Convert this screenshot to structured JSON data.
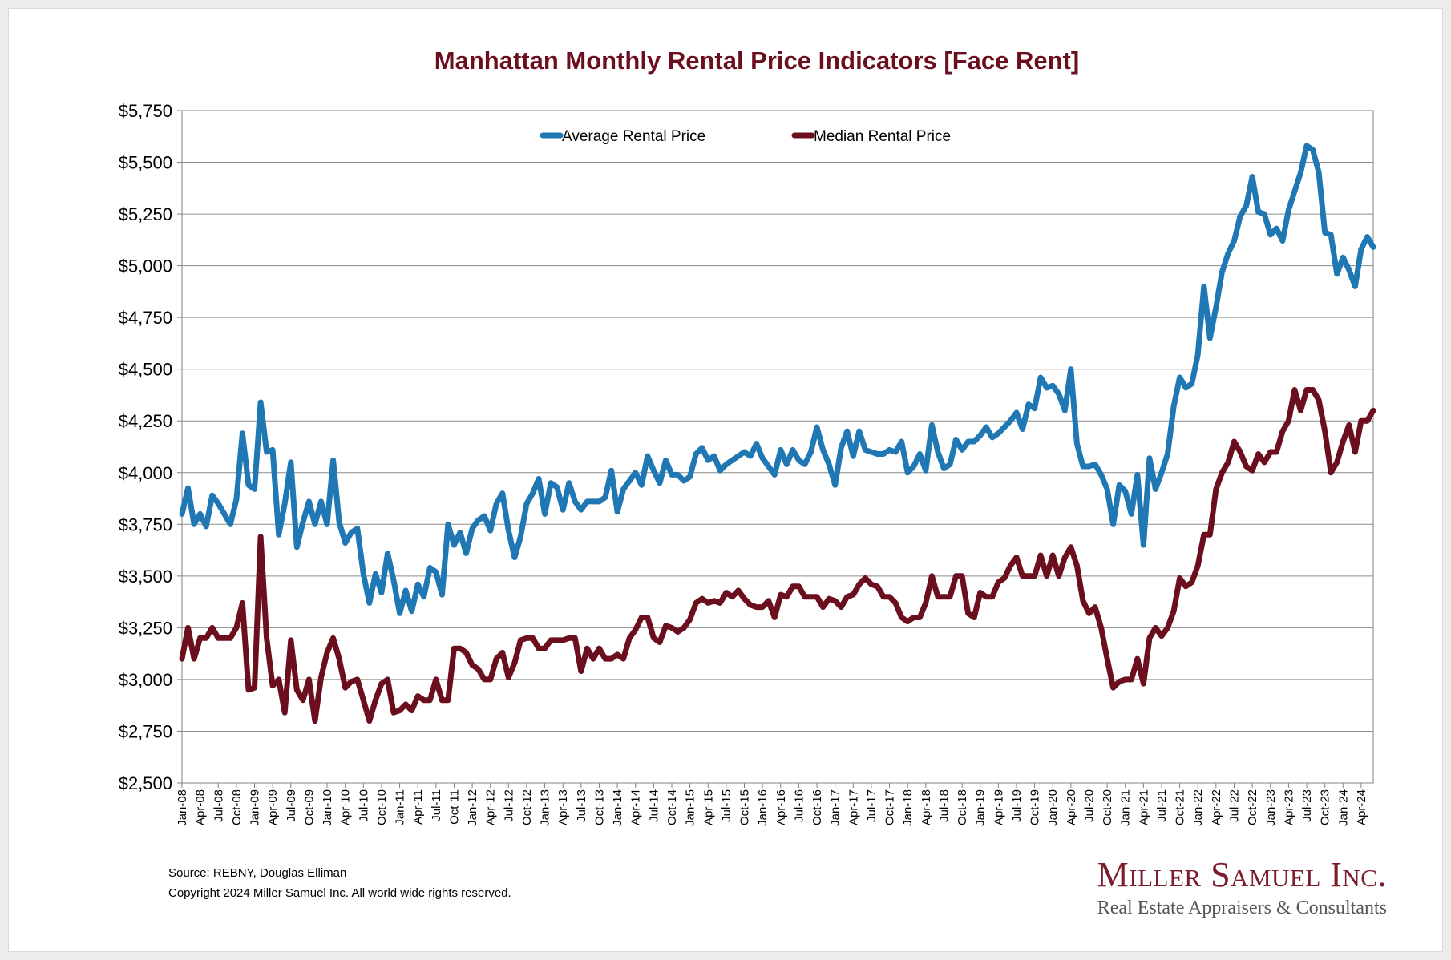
{
  "colors": {
    "average": "#1f77b4",
    "median": "#6b0f1f",
    "title": "#6b0f1f",
    "brand": "#7b1d2c"
  },
  "chart_data": {
    "type": "line",
    "title": "Manhattan Monthly Rental Price Indicators [Face Rent]",
    "ylim": [
      2500,
      5750
    ],
    "ytick_values": [
      2500,
      2750,
      3000,
      3250,
      3500,
      3750,
      4000,
      4250,
      4500,
      4750,
      5000,
      5250,
      5500,
      5750
    ],
    "ytick_labels": [
      "$2,500",
      "$2,750",
      "$3,000",
      "$3,250",
      "$3,500",
      "$3,750",
      "$4,000",
      "$4,250",
      "$4,500",
      "$4,750",
      "$5,000",
      "$5,250",
      "$5,500",
      "$5,750"
    ],
    "grid": true,
    "legend": "top-center",
    "x_start": "Jan-08",
    "xtick_every_months": 3,
    "xtick_labels": [
      "Jan-08",
      "Apr-08",
      "Jul-08",
      "Oct-08",
      "Jan-09",
      "Apr-09",
      "Jul-09",
      "Oct-09",
      "Jan-10",
      "Apr-10",
      "Jul-10",
      "Oct-10",
      "Jan-11",
      "Apr-11",
      "Jul-11",
      "Oct-11",
      "Jan-12",
      "Apr-12",
      "Jul-12",
      "Oct-12",
      "Jan-13",
      "Apr-13",
      "Jul-13",
      "Oct-13",
      "Jan-14",
      "Apr-14",
      "Jul-14",
      "Oct-14",
      "Jan-15",
      "Apr-15",
      "Jul-15",
      "Oct-15",
      "Jan-16",
      "Apr-16",
      "Jul-16",
      "Oct-16",
      "Jan-17",
      "Apr-17",
      "Jul-17",
      "Oct-17",
      "Jan-18",
      "Apr-18",
      "Jul-18",
      "Oct-18",
      "Jan-19",
      "Apr-19",
      "Jul-19",
      "Oct-19",
      "Jan-20",
      "Apr-20",
      "Jul-20",
      "Oct-20",
      "Jan-21",
      "Apr-21",
      "Jul-21",
      "Oct-21",
      "Jan-22",
      "Apr-22",
      "Jul-22",
      "Oct-22",
      "Jan-23",
      "Apr-23",
      "Jul-23",
      "Oct-23",
      "Jan-24",
      "Apr-24"
    ],
    "series": [
      {
        "name": "Average Rental Price",
        "color": "#1f77b4",
        "values": [
          3800,
          3925,
          3750,
          3800,
          3740,
          3890,
          3850,
          3800,
          3750,
          3870,
          4190,
          3940,
          3920,
          4340,
          4100,
          4110,
          3700,
          3850,
          4050,
          3640,
          3760,
          3860,
          3750,
          3860,
          3750,
          4060,
          3760,
          3660,
          3710,
          3730,
          3510,
          3370,
          3510,
          3420,
          3610,
          3480,
          3320,
          3430,
          3330,
          3460,
          3400,
          3540,
          3520,
          3410,
          3750,
          3650,
          3710,
          3610,
          3730,
          3770,
          3790,
          3720,
          3850,
          3900,
          3720,
          3590,
          3690,
          3850,
          3900,
          3970,
          3800,
          3950,
          3930,
          3820,
          3950,
          3860,
          3820,
          3860,
          3860,
          3860,
          3880,
          4010,
          3810,
          3920,
          3960,
          4000,
          3940,
          4080,
          4010,
          3950,
          4060,
          3990,
          3990,
          3960,
          3980,
          4090,
          4120,
          4060,
          4080,
          4010,
          4040,
          4060,
          4080,
          4100,
          4080,
          4140,
          4070,
          4030,
          3990,
          4110,
          4040,
          4110,
          4060,
          4040,
          4100,
          4220,
          4110,
          4040,
          3940,
          4120,
          4200,
          4080,
          4200,
          4110,
          4100,
          4090,
          4090,
          4110,
          4100,
          4150,
          4000,
          4030,
          4090,
          4010,
          4230,
          4100,
          4020,
          4040,
          4160,
          4110,
          4150,
          4150,
          4180,
          4220,
          4170,
          4190,
          4220,
          4250,
          4290,
          4210,
          4330,
          4310,
          4460,
          4410,
          4420,
          4380,
          4300,
          4500,
          4140,
          4030,
          4030,
          4040,
          3990,
          3920,
          3750,
          3940,
          3910,
          3800,
          3990,
          3650,
          4070,
          3920,
          4000,
          4090,
          4320,
          4460,
          4410,
          4430,
          4570,
          4900,
          4650,
          4800,
          4970,
          5060,
          5120,
          5240,
          5290,
          5430,
          5260,
          5250,
          5150,
          5180,
          5120,
          5270,
          5360,
          5450,
          5580,
          5560,
          5450,
          5160,
          5150,
          4960,
          5040,
          4980,
          4900,
          5080,
          5140,
          5090
        ]
      },
      {
        "name": "Median Rental Price",
        "color": "#6b0f1f",
        "values": [
          3100,
          3250,
          3100,
          3200,
          3200,
          3250,
          3200,
          3200,
          3200,
          3250,
          3370,
          2950,
          2960,
          3690,
          3200,
          2970,
          3000,
          2840,
          3190,
          2950,
          2900,
          3000,
          2800,
          3010,
          3130,
          3200,
          3100,
          2960,
          2990,
          3000,
          2900,
          2800,
          2900,
          2980,
          3000,
          2840,
          2850,
          2880,
          2850,
          2920,
          2900,
          2900,
          3000,
          2900,
          2900,
          3150,
          3150,
          3130,
          3070,
          3050,
          3000,
          3000,
          3100,
          3130,
          3010,
          3080,
          3190,
          3200,
          3200,
          3150,
          3150,
          3190,
          3190,
          3190,
          3200,
          3200,
          3040,
          3150,
          3100,
          3150,
          3100,
          3100,
          3120,
          3100,
          3200,
          3240,
          3300,
          3300,
          3200,
          3180,
          3260,
          3250,
          3230,
          3250,
          3290,
          3370,
          3390,
          3370,
          3380,
          3370,
          3420,
          3400,
          3430,
          3390,
          3360,
          3350,
          3350,
          3380,
          3300,
          3410,
          3400,
          3450,
          3450,
          3400,
          3400,
          3400,
          3350,
          3390,
          3380,
          3350,
          3400,
          3410,
          3460,
          3490,
          3460,
          3450,
          3400,
          3400,
          3370,
          3300,
          3280,
          3300,
          3300,
          3370,
          3500,
          3400,
          3400,
          3400,
          3500,
          3500,
          3320,
          3300,
          3420,
          3400,
          3400,
          3470,
          3490,
          3550,
          3590,
          3500,
          3500,
          3500,
          3600,
          3500,
          3600,
          3500,
          3590,
          3640,
          3550,
          3380,
          3320,
          3350,
          3250,
          3100,
          2960,
          2990,
          3000,
          3000,
          3100,
          2980,
          3200,
          3250,
          3210,
          3250,
          3330,
          3490,
          3450,
          3470,
          3550,
          3700,
          3700,
          3920,
          4000,
          4050,
          4150,
          4100,
          4030,
          4010,
          4090,
          4050,
          4100,
          4100,
          4200,
          4250,
          4400,
          4300,
          4400,
          4400,
          4350,
          4200,
          4000,
          4050,
          4150,
          4230,
          4100,
          4250,
          4250,
          4300
        ]
      }
    ]
  },
  "footer": {
    "source": "Source: REBNY, Douglas Elliman",
    "copyright": "Copyright 2024 Miller Samuel Inc.  All world wide rights reserved."
  },
  "brand": {
    "name": "Miller Samuel Inc.",
    "tagline": "Real Estate Appraisers & Consultants"
  }
}
